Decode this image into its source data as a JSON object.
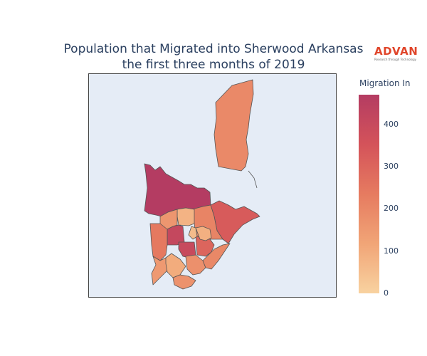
{
  "title": {
    "line1": "Population that Migrated into Sherwood Arkansas",
    "line2": "the first three months of 2019"
  },
  "logo": {
    "name": "ADVAN",
    "tagline": "Research through Technology",
    "color": "#e0452a"
  },
  "colorbar": {
    "title": "Migration In",
    "min": 0,
    "max": 470,
    "ticks": [
      "0",
      "100",
      "200",
      "300",
      "400"
    ],
    "colorscale": [
      "#f8d2a0",
      "#f1a577",
      "#e67b60",
      "#d4535a",
      "#b43c62"
    ]
  },
  "map": {
    "background": "#e5ecf6",
    "regions": [
      {
        "id": "north-tract",
        "value": 195
      },
      {
        "id": "northwest-tract",
        "value": 470
      },
      {
        "id": "east-tract",
        "value": 330
      },
      {
        "id": "central-north-tract",
        "value": 210
      },
      {
        "id": "central-light-tract",
        "value": 80
      },
      {
        "id": "central-tract-a",
        "value": 160
      },
      {
        "id": "central-dark-tract-1",
        "value": 410
      },
      {
        "id": "central-dark-tract-2",
        "value": 400
      },
      {
        "id": "west-tract",
        "value": 240
      },
      {
        "id": "southwest-tract",
        "value": 150
      },
      {
        "id": "central-mid-tract",
        "value": 300
      },
      {
        "id": "south-tract-1",
        "value": 100
      },
      {
        "id": "south-tract-2",
        "value": 175
      },
      {
        "id": "south-tract-3",
        "value": 170
      },
      {
        "id": "southeast-tract",
        "value": 200
      },
      {
        "id": "south-light-tract",
        "value": 90
      },
      {
        "id": "small-tract",
        "value": 60
      }
    ]
  }
}
